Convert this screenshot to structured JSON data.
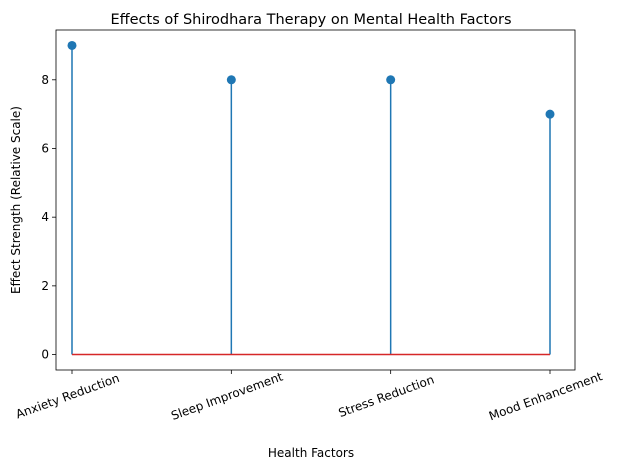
{
  "chart_data": {
    "type": "stem",
    "title": "Effects of Shirodhara Therapy on Mental Health Factors",
    "xlabel": "Health Factors",
    "ylabel": "Effect Strength (Relative Scale)",
    "categories": [
      "Anxiety Reduction",
      "Sleep Improvement",
      "Stress Reduction",
      "Mood Enhancement"
    ],
    "values": [
      9,
      8,
      8,
      7
    ],
    "ylim": [
      -0.45,
      9.45
    ],
    "yticks": [
      0,
      2,
      4,
      6,
      8
    ],
    "grid": false,
    "colors": {
      "stem": "#1f77b4",
      "marker": "#1f77b4",
      "baseline": "#d62728"
    }
  }
}
